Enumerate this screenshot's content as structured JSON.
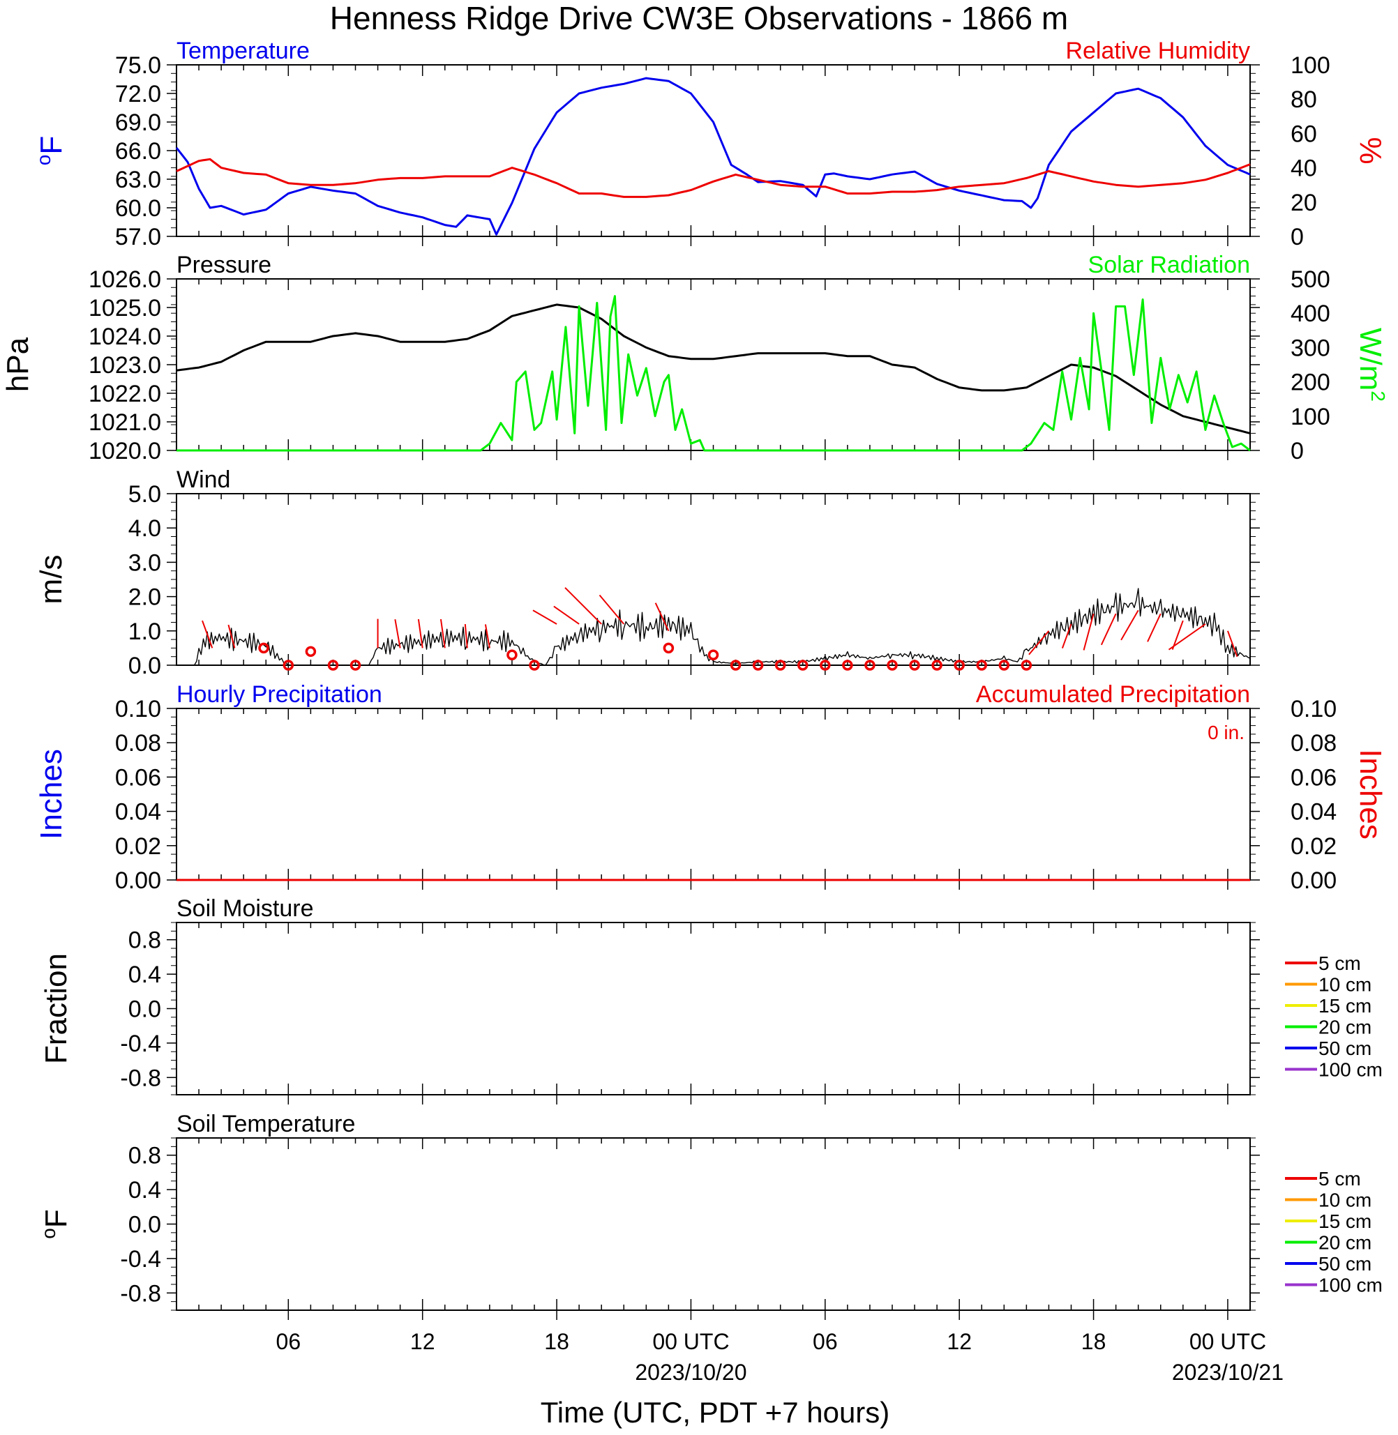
{
  "title": "Henness Ridge Drive CW3E Observations - 1866 m",
  "x_axis": {
    "label": "Time (UTC, PDT +7 hours)",
    "tick_labels": [
      {
        "hour": 6,
        "text": "06",
        "date": ""
      },
      {
        "hour": 12,
        "text": "12",
        "date": ""
      },
      {
        "hour": 18,
        "text": "18",
        "date": ""
      },
      {
        "hour": 24,
        "text": "00 UTC",
        "date": "2023/10/20"
      },
      {
        "hour": 30,
        "text": "06",
        "date": ""
      },
      {
        "hour": 36,
        "text": "12",
        "date": ""
      },
      {
        "hour": 42,
        "text": "18",
        "date": ""
      },
      {
        "hour": 48,
        "text": "00 UTC",
        "date": "2023/10/21"
      }
    ],
    "range_hours": [
      1,
      49
    ]
  },
  "colors": {
    "blue": "#0000ee",
    "red": "#ee0000",
    "green": "#00ee00",
    "black": "#000000",
    "orange": "#ff9900",
    "yellow": "#eeee00",
    "purple": "#9933cc"
  },
  "chart_data": [
    {
      "type": "line",
      "panel": "temperature_humidity",
      "left_title": "Temperature",
      "right_title": "Relative Humidity",
      "left_ylabel": "oF",
      "right_ylabel": "%",
      "left_ticks": [
        "75.0",
        "72.0",
        "69.0",
        "66.0",
        "63.0",
        "60.0",
        "57.0"
      ],
      "right_ticks": [
        "100",
        "80",
        "60",
        "40",
        "20",
        "0"
      ],
      "left_ylim": [
        57,
        75
      ],
      "right_ylim": [
        0,
        100
      ],
      "series": [
        {
          "name": "Temperature",
          "axis": "left",
          "color": "#0000ee",
          "x": [
            1,
            1.5,
            2,
            2.5,
            3,
            4,
            5,
            6,
            7,
            8,
            9,
            10,
            11,
            12,
            13,
            13.5,
            14,
            15,
            15.3,
            16,
            17,
            18,
            19,
            20,
            21,
            22,
            23,
            24,
            25,
            25.8,
            26.5,
            27,
            28,
            29,
            29.6,
            30,
            30.4,
            31,
            32,
            33,
            34,
            35,
            36,
            37,
            38,
            38.8,
            39.2,
            39.5,
            40,
            41,
            42,
            43,
            44,
            45,
            46,
            47,
            48,
            49
          ],
          "y": [
            66.3,
            64.8,
            62.0,
            60.0,
            60.2,
            59.3,
            59.8,
            61.5,
            62.2,
            61.8,
            61.5,
            60.2,
            59.5,
            59.0,
            58.2,
            58.0,
            59.2,
            58.8,
            57.2,
            60.5,
            66.2,
            70.0,
            72.0,
            72.6,
            73.0,
            73.6,
            73.3,
            72.0,
            69.0,
            64.5,
            63.5,
            62.7,
            62.8,
            62.4,
            61.2,
            63.5,
            63.6,
            63.3,
            63.0,
            63.5,
            63.8,
            62.5,
            61.8,
            61.3,
            60.8,
            60.7,
            60.0,
            61.0,
            64.5,
            68.0,
            70.0,
            72.0,
            72.5,
            71.5,
            69.5,
            66.5,
            64.5,
            63.5
          ]
        },
        {
          "name": "Relative Humidity",
          "axis": "right",
          "color": "#ee0000",
          "x": [
            1,
            2,
            2.5,
            3,
            4,
            5,
            6,
            7,
            8,
            9,
            10,
            11,
            12,
            13,
            14,
            15,
            16,
            17,
            18,
            19,
            20,
            21,
            22,
            23,
            24,
            25,
            26,
            27,
            28,
            29,
            30,
            31,
            32,
            33,
            34,
            35,
            36,
            37,
            38,
            39,
            40,
            41,
            42,
            43,
            44,
            45,
            46,
            47,
            48,
            49
          ],
          "y": [
            38,
            44,
            45,
            40,
            37,
            36,
            31,
            30,
            30,
            31,
            33,
            34,
            34,
            35,
            35,
            35,
            40,
            36,
            31,
            25,
            25,
            23,
            23,
            24,
            27,
            32,
            36,
            33,
            30,
            29,
            29,
            25,
            25,
            26,
            26,
            27,
            29,
            30,
            31,
            34,
            38,
            35,
            32,
            30,
            29,
            30,
            31,
            33,
            37,
            42
          ]
        }
      ]
    },
    {
      "type": "line",
      "panel": "pressure_solar",
      "left_title": "Pressure",
      "right_title": "Solar Radiation",
      "left_ylabel": "hPa",
      "right_ylabel": "W/m2",
      "left_ticks": [
        "1026.0",
        "1025.0",
        "1024.0",
        "1023.0",
        "1022.0",
        "1021.0",
        "1020.0"
      ],
      "right_ticks": [
        "500",
        "400",
        "300",
        "200",
        "100",
        "0"
      ],
      "left_ylim": [
        1020,
        1026
      ],
      "right_ylim": [
        0,
        500
      ],
      "series": [
        {
          "name": "Pressure",
          "axis": "left",
          "color": "#000000",
          "x": [
            1,
            2,
            3,
            4,
            5,
            6,
            7,
            8,
            9,
            10,
            11,
            12,
            13,
            14,
            15,
            16,
            17,
            18,
            19,
            20,
            21,
            22,
            23,
            24,
            25,
            26,
            27,
            28,
            29,
            30,
            31,
            32,
            33,
            34,
            35,
            36,
            37,
            38,
            39,
            40,
            41,
            42,
            43,
            44,
            45,
            46,
            47,
            48,
            49
          ],
          "y": [
            1022.8,
            1022.9,
            1023.1,
            1023.5,
            1023.8,
            1023.8,
            1023.8,
            1024.0,
            1024.1,
            1024.0,
            1023.8,
            1023.8,
            1023.8,
            1023.9,
            1024.2,
            1024.7,
            1024.9,
            1025.1,
            1025.0,
            1024.6,
            1024.0,
            1023.6,
            1023.3,
            1023.2,
            1023.2,
            1023.3,
            1023.4,
            1023.4,
            1023.4,
            1023.4,
            1023.3,
            1023.3,
            1023.0,
            1022.9,
            1022.5,
            1022.2,
            1022.1,
            1022.1,
            1022.2,
            1022.6,
            1023.0,
            1022.9,
            1022.6,
            1022.1,
            1021.6,
            1021.2,
            1021.0,
            1020.8,
            1020.6
          ]
        },
        {
          "name": "Solar Radiation",
          "axis": "right",
          "color": "#00ee00",
          "x": [
            1,
            14.6,
            15.0,
            15.5,
            16.0,
            16.2,
            16.6,
            17.0,
            17.3,
            17.8,
            18.0,
            18.4,
            18.8,
            19.0,
            19.4,
            19.8,
            20.2,
            20.4,
            20.6,
            20.9,
            21.2,
            21.6,
            22.0,
            22.4,
            22.8,
            23.0,
            23.3,
            23.6,
            24.0,
            24.4,
            24.6,
            38.8,
            39.2,
            39.8,
            40.2,
            40.6,
            41.0,
            41.4,
            41.8,
            42.0,
            42.4,
            42.7,
            43.0,
            43.4,
            43.8,
            44.2,
            44.6,
            45.0,
            45.4,
            45.8,
            46.2,
            46.6,
            47.0,
            47.4,
            47.8,
            48.2,
            48.6,
            49
          ],
          "y": [
            0,
            0,
            20,
            80,
            30,
            200,
            230,
            60,
            80,
            230,
            90,
            360,
            50,
            420,
            130,
            430,
            60,
            390,
            450,
            80,
            280,
            160,
            240,
            100,
            200,
            220,
            60,
            120,
            20,
            30,
            0,
            0,
            20,
            80,
            60,
            230,
            90,
            270,
            120,
            400,
            210,
            60,
            420,
            420,
            220,
            440,
            80,
            270,
            120,
            220,
            140,
            230,
            60,
            160,
            80,
            10,
            20,
            0
          ]
        }
      ]
    },
    {
      "type": "line",
      "panel": "wind",
      "left_title": "Wind",
      "left_ylabel": "m/s",
      "left_ticks": [
        "5.0",
        "4.0",
        "3.0",
        "2.0",
        "1.0",
        "0.0"
      ],
      "left_ylim": [
        0,
        5
      ],
      "series": [
        {
          "name": "Wind",
          "axis": "left",
          "color": "#000000",
          "x": [
            1,
            1.8,
            2.2,
            3,
            4,
            5,
            5.6,
            6,
            7,
            8,
            9,
            9.6,
            10,
            11,
            12,
            13,
            14,
            15,
            16,
            16.6,
            17,
            17.5,
            18,
            19,
            20,
            21,
            22,
            23,
            24,
            24.6,
            25,
            26,
            27,
            28,
            29,
            30,
            31,
            32,
            33,
            34,
            35,
            36,
            37,
            38,
            38.6,
            39,
            40,
            41,
            42,
            43,
            44,
            45,
            46,
            47,
            47.5,
            48,
            49
          ],
          "y": [
            0,
            0,
            0.7,
            0.8,
            0.7,
            0.6,
            0.2,
            0,
            0,
            0,
            0,
            0,
            0.5,
            0.6,
            0.7,
            0.8,
            0.8,
            0.7,
            0.7,
            0.3,
            0.1,
            0,
            0.5,
            0.9,
            1.1,
            1.2,
            1.1,
            1.2,
            1.0,
            0.3,
            0.1,
            0.05,
            0.1,
            0.1,
            0.1,
            0.2,
            0.3,
            0.2,
            0.3,
            0.3,
            0.2,
            0.1,
            0.1,
            0.2,
            0.1,
            0.4,
            0.9,
            1.2,
            1.5,
            1.7,
            1.8,
            1.6,
            1.5,
            1.3,
            1.1,
            0.5,
            0.2
          ]
        }
      ],
      "barbs": [
        {
          "hour": 2.6,
          "speed": 0.5,
          "len": 0.85,
          "angle": -20
        },
        {
          "hour": 3.6,
          "speed": 0.5,
          "len": 0.7,
          "angle": -15
        },
        {
          "hour": 4.9,
          "speed": 0.5,
          "calm": true
        },
        {
          "hour": 6.0,
          "speed": 0.0,
          "calm": true
        },
        {
          "hour": 7.0,
          "speed": 0.4,
          "calm": true
        },
        {
          "hour": 8.0,
          "speed": 0.0,
          "calm": true
        },
        {
          "hour": 9.0,
          "speed": 0.0,
          "calm": true
        },
        {
          "hour": 10.0,
          "speed": 0.5,
          "len": 0.85,
          "angle": 0
        },
        {
          "hour": 11.0,
          "speed": 0.5,
          "len": 0.85,
          "angle": -10
        },
        {
          "hour": 12.0,
          "speed": 0.5,
          "len": 0.85,
          "angle": -8
        },
        {
          "hour": 13.0,
          "speed": 0.5,
          "len": 0.85,
          "angle": -8
        },
        {
          "hour": 14.0,
          "speed": 0.5,
          "len": 0.7,
          "angle": -5
        },
        {
          "hour": 15.0,
          "speed": 0.5,
          "len": 0.7,
          "angle": -10
        },
        {
          "hour": 16.0,
          "speed": 0.3,
          "calm": true
        },
        {
          "hour": 17.0,
          "speed": 0.0,
          "calm": true
        },
        {
          "hour": 18.0,
          "speed": 1.2,
          "len": 0.8,
          "angle": -60
        },
        {
          "hour": 19.0,
          "speed": 1.2,
          "len": 0.9,
          "angle": -55
        },
        {
          "hour": 20.0,
          "speed": 1.2,
          "len": 1.5,
          "angle": -45
        },
        {
          "hour": 21.0,
          "speed": 1.2,
          "len": 1.1,
          "angle": -40
        },
        {
          "hour": 23.0,
          "speed": 1.0,
          "len": 0.9,
          "angle": -25
        },
        {
          "hour": 23.0,
          "speed": 0.5,
          "calm": true
        },
        {
          "hour": 25.0,
          "speed": 0.3,
          "calm": true
        },
        {
          "hour": 26.0,
          "speed": 0.0,
          "calm": true
        },
        {
          "hour": 27.0,
          "speed": 0.0,
          "calm": true
        },
        {
          "hour": 28.0,
          "speed": 0.0,
          "calm": true
        },
        {
          "hour": 29.0,
          "speed": 0.0,
          "calm": true
        },
        {
          "hour": 30.0,
          "speed": 0.0,
          "calm": true
        },
        {
          "hour": 31.0,
          "speed": 0.0,
          "calm": true
        },
        {
          "hour": 32.0,
          "speed": 0.0,
          "calm": true
        },
        {
          "hour": 33.0,
          "speed": 0.0,
          "calm": true
        },
        {
          "hour": 34.0,
          "speed": 0.0,
          "calm": true
        },
        {
          "hour": 35.0,
          "speed": 0.0,
          "calm": true
        },
        {
          "hour": 36.0,
          "speed": 0.0,
          "calm": true
        },
        {
          "hour": 37.0,
          "speed": 0.0,
          "calm": true
        },
        {
          "hour": 38.0,
          "speed": 0.0,
          "calm": true
        },
        {
          "hour": 39.0,
          "speed": 0.0,
          "calm": true
        },
        {
          "hour": 40.0,
          "speed": 1.0,
          "len": 0.9,
          "angle": -140
        },
        {
          "hour": 41.0,
          "speed": 1.2,
          "len": 0.75,
          "angle": -160
        },
        {
          "hour": 42.0,
          "speed": 1.5,
          "len": 1.1,
          "angle": -165
        },
        {
          "hour": 43.0,
          "speed": 1.5,
          "len": 1.0,
          "angle": -155
        },
        {
          "hour": 44.0,
          "speed": 1.6,
          "len": 1.0,
          "angle": -150
        },
        {
          "hour": 45.0,
          "speed": 1.5,
          "len": 0.9,
          "angle": -155
        },
        {
          "hour": 46.0,
          "speed": 1.3,
          "len": 0.9,
          "angle": -160
        },
        {
          "hour": 47.0,
          "speed": 1.2,
          "len": 1.3,
          "angle": -125
        },
        {
          "hour": 48.0,
          "speed": 1.0,
          "len": 0.8,
          "angle": 160
        }
      ]
    },
    {
      "type": "line",
      "panel": "precipitation",
      "left_title": "Hourly Precipitation",
      "right_title": "Accumulated Precipitation",
      "annotation": "0 in.",
      "left_ylabel": "Inches",
      "right_ylabel": "Inches",
      "left_ticks": [
        "0.10",
        "0.08",
        "0.06",
        "0.04",
        "0.02",
        "0.00"
      ],
      "right_ticks": [
        "0.10",
        "0.08",
        "0.06",
        "0.04",
        "0.02",
        "0.00"
      ],
      "left_ylim": [
        0,
        0.1
      ],
      "right_ylim": [
        0,
        0.1
      ],
      "series": [
        {
          "name": "Hourly Precipitation",
          "axis": "left",
          "color": "#0000ee",
          "x": [
            1,
            49
          ],
          "y": [
            0,
            0
          ]
        },
        {
          "name": "Accumulated Precipitation",
          "axis": "right",
          "color": "#ee0000",
          "x": [
            1,
            49
          ],
          "y": [
            0,
            0
          ]
        }
      ]
    },
    {
      "type": "line",
      "panel": "soil_moisture",
      "left_title": "Soil Moisture",
      "left_ylabel": "Fraction",
      "left_ticks": [
        "0.8",
        "0.4",
        "0.0",
        "-0.4",
        "-0.8"
      ],
      "left_ylim": [
        -1,
        1
      ],
      "legend": [
        {
          "label": "5 cm",
          "color": "#ee0000"
        },
        {
          "label": "10 cm",
          "color": "#ff9900"
        },
        {
          "label": "15 cm",
          "color": "#eeee00"
        },
        {
          "label": "20 cm",
          "color": "#00ee00"
        },
        {
          "label": "50 cm",
          "color": "#0000ee"
        },
        {
          "label": "100 cm",
          "color": "#9933cc"
        }
      ],
      "series": []
    },
    {
      "type": "line",
      "panel": "soil_temperature",
      "left_title": "Soil Temperature",
      "left_ylabel": "oF",
      "left_ticks": [
        "0.8",
        "0.4",
        "0.0",
        "-0.4",
        "-0.8"
      ],
      "left_ylim": [
        -1,
        1
      ],
      "legend": [
        {
          "label": "5 cm",
          "color": "#ee0000"
        },
        {
          "label": "10 cm",
          "color": "#ff9900"
        },
        {
          "label": "15 cm",
          "color": "#eeee00"
        },
        {
          "label": "20 cm",
          "color": "#00ee00"
        },
        {
          "label": "50 cm",
          "color": "#0000ee"
        },
        {
          "label": "100 cm",
          "color": "#9933cc"
        }
      ],
      "series": []
    }
  ]
}
